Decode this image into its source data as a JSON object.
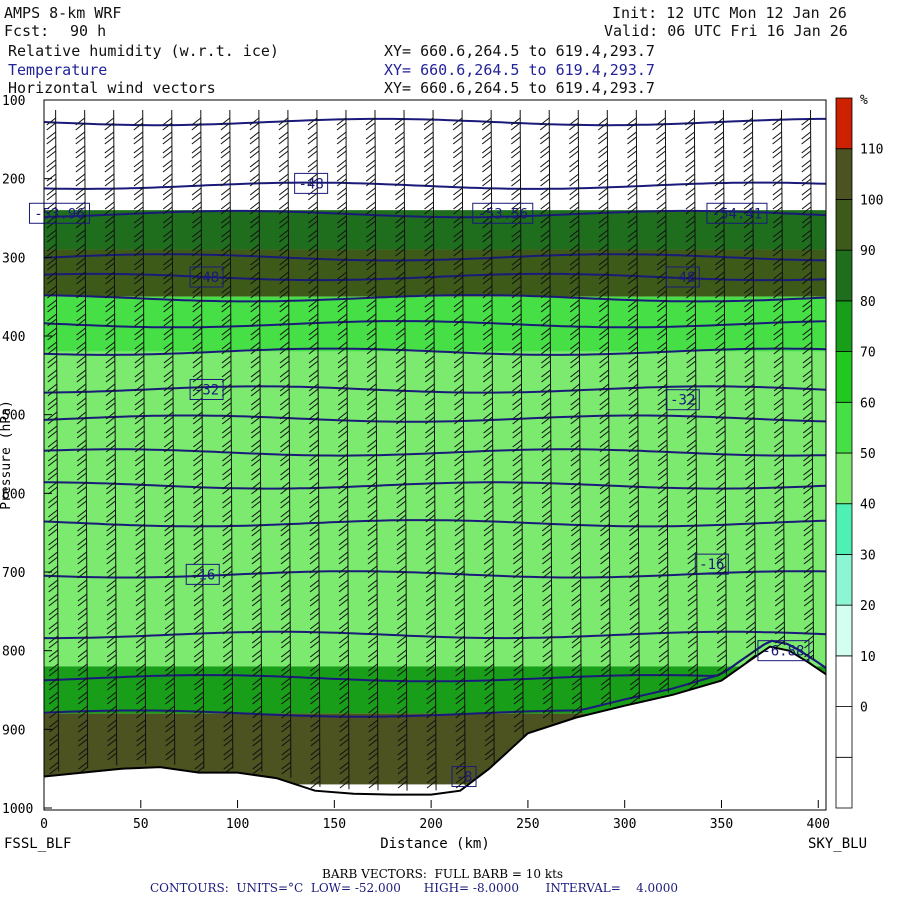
{
  "header": {
    "model": "AMPS 8-km WRF",
    "fcst_label": "Fcst:",
    "fcst_hours": "90 h",
    "init": "Init: 12 UTC Mon 12 Jan 26",
    "valid": "Valid: 06 UTC Fri 16 Jan 26",
    "fields": [
      {
        "name": "Relative humidity (w.r.t. ice)",
        "xy": "XY= 660.6,264.5 to 619.4,293.7"
      },
      {
        "name": "Temperature",
        "xy": "XY= 660.6,264.5 to 619.4,293.7"
      },
      {
        "name": "Horizontal wind vectors",
        "xy": "XY= 660.6,264.5 to 619.4,293.7"
      }
    ]
  },
  "chart_data": {
    "type": "cross-section",
    "title": "Relative humidity (w.r.t. ice), Temperature, Horizontal wind vectors",
    "xlabel": "Distance (km)",
    "ylabel": "Pressure (hPa)",
    "xlim": [
      0,
      404
    ],
    "ylim": [
      1000,
      100
    ],
    "x_ticks": [
      0,
      50,
      100,
      150,
      200,
      250,
      300,
      350,
      400
    ],
    "y_ticks": [
      100,
      200,
      300,
      400,
      500,
      600,
      700,
      800,
      900,
      1000
    ],
    "start_label": "FSSL_BLF",
    "end_label": "SKY_BLU",
    "colorbar": {
      "unit": "%",
      "levels": [
        0,
        10,
        20,
        30,
        40,
        50,
        60,
        70,
        80,
        90,
        100,
        110
      ],
      "colors": [
        "#ffffff",
        "#ffffff",
        "#ffffff",
        "#d2fff0",
        "#8cf6d4",
        "#4ff0b4",
        "#7bea6e",
        "#46e046",
        "#20c820",
        "#199e19",
        "#1e6e1e",
        "#3e5a18",
        "#4c5220",
        "#cc2200"
      ]
    },
    "rh_layers": [
      {
        "pressure_top": 240,
        "pressure_bottom": 290,
        "rh": 80
      },
      {
        "pressure_top": 290,
        "pressure_bottom": 350,
        "rh": 95
      },
      {
        "pressure_top": 350,
        "pressure_bottom": 420,
        "rh": 55
      },
      {
        "pressure_top": 420,
        "pressure_bottom": 820,
        "rh": 45
      },
      {
        "pressure_top": 820,
        "pressure_bottom": 880,
        "rh": 75
      },
      {
        "pressure_top": 880,
        "pressure_bottom": 970,
        "rh": 105
      }
    ],
    "terrain": {
      "distance": [
        0,
        20,
        40,
        60,
        80,
        100,
        120,
        140,
        160,
        180,
        200,
        215,
        230,
        250,
        275,
        300,
        325,
        350,
        365,
        375,
        385,
        395,
        404
      ],
      "surface_pressure": [
        960,
        955,
        950,
        948,
        955,
        955,
        962,
        978,
        982,
        983,
        983,
        978,
        950,
        905,
        885,
        870,
        856,
        838,
        812,
        795,
        800,
        815,
        830
      ]
    },
    "temperature_contours": [
      {
        "label": "-48",
        "pressure": 206,
        "label_distance": 138
      },
      {
        "label": "-53.56",
        "pressure": 244,
        "label_distance": 237
      },
      {
        "label": "-54.41",
        "pressure": 244,
        "label_distance": 358
      },
      {
        "label": "-53.96",
        "pressure": 244,
        "label_distance": 8
      },
      {
        "label": "-48",
        "pressure": 325,
        "label_distance": 84
      },
      {
        "label": "-48",
        "pressure": 325,
        "label_distance": 330
      },
      {
        "label": "-32",
        "pressure": 468,
        "label_distance": 84
      },
      {
        "label": "-32",
        "pressure": 481,
        "label_distance": 330
      },
      {
        "label": "-16",
        "pressure": 703,
        "label_distance": 82
      },
      {
        "label": "-16",
        "pressure": 690,
        "label_distance": 345
      },
      {
        "label": "-8",
        "pressure": 960,
        "label_distance": 217
      },
      {
        "label": "-6.88",
        "pressure": 800,
        "label_distance": 382
      }
    ],
    "isotherm_pressures": [
      128,
      209,
      245,
      300,
      325,
      352,
      385,
      420,
      468,
      505,
      548,
      590,
      638,
      703,
      780,
      835,
      880
    ]
  },
  "footer": {
    "barb": "BARB VECTORS:  FULL BARB = 10 kts",
    "contours": "CONTOURS:  UNITS=°C  LOW= -52.000      HIGH= -8.0000       INTERVAL=    4.0000"
  },
  "colors": {
    "contour": "#1a1a7a",
    "axis": "#000000"
  }
}
